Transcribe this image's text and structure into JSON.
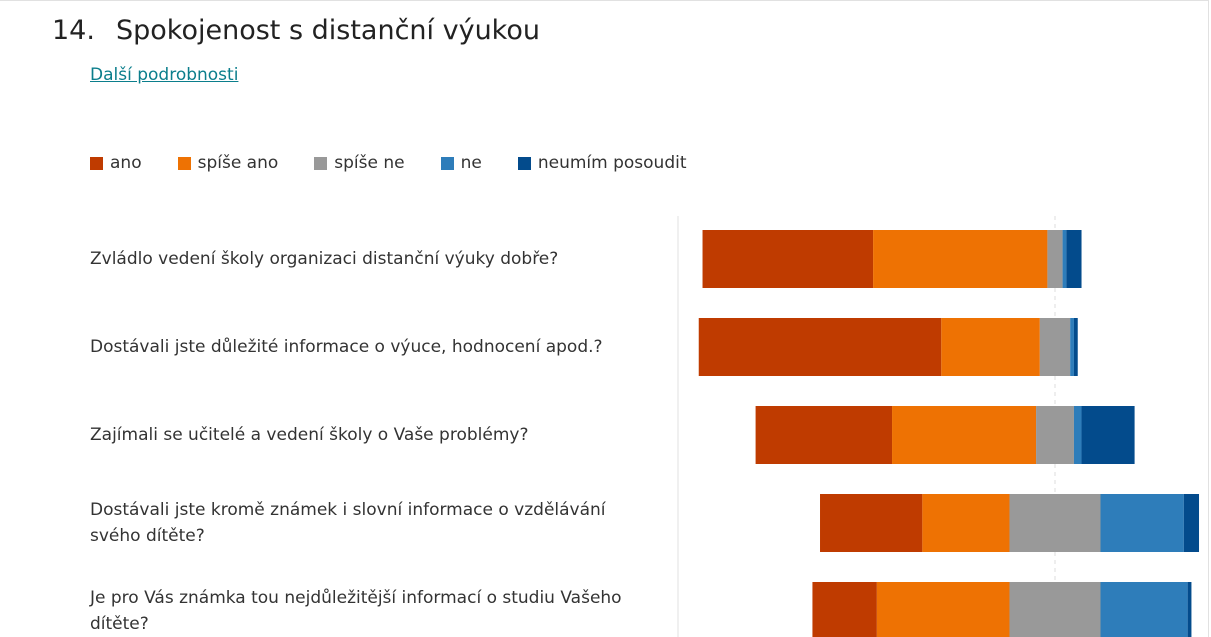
{
  "chart_data": {
    "type": "bar",
    "number": "14.",
    "title": "Spokojenost s distanční výukou",
    "link": "Další podrobnosti",
    "orientation": "horizontal",
    "stacked": true,
    "categories": [
      "Zvládlo vedení školy organizaci distanční výuky dobře?",
      "Dostávali jste důležité informace o výuce, hodnocení apod.?",
      "Zajímali se učitelé a vedení školy o Vaše problémy?",
      "Dostávali jste kromě známek i slovní informace o vzdělávání svého dítěte?",
      "Je pro Vás známka tou nejdůležitější informací o studiu Vašeho dítěte?"
    ],
    "series": [
      {
        "name": "ano",
        "color": "#bf3b00",
        "values": [
          45,
          64,
          36,
          27,
          17
        ]
      },
      {
        "name": "spíše ano",
        "color": "#ee7203",
        "values": [
          46,
          26,
          38,
          23,
          35
        ]
      },
      {
        "name": "spíše ne",
        "color": "#999999",
        "values": [
          4,
          8,
          10,
          24,
          24
        ]
      },
      {
        "name": "ne",
        "color": "#2e7dba",
        "values": [
          1,
          1,
          2,
          22,
          23
        ]
      },
      {
        "name": "neumím posoudit",
        "color": "#034b8c",
        "values": [
          4,
          1,
          14,
          4,
          1
        ]
      }
    ]
  }
}
